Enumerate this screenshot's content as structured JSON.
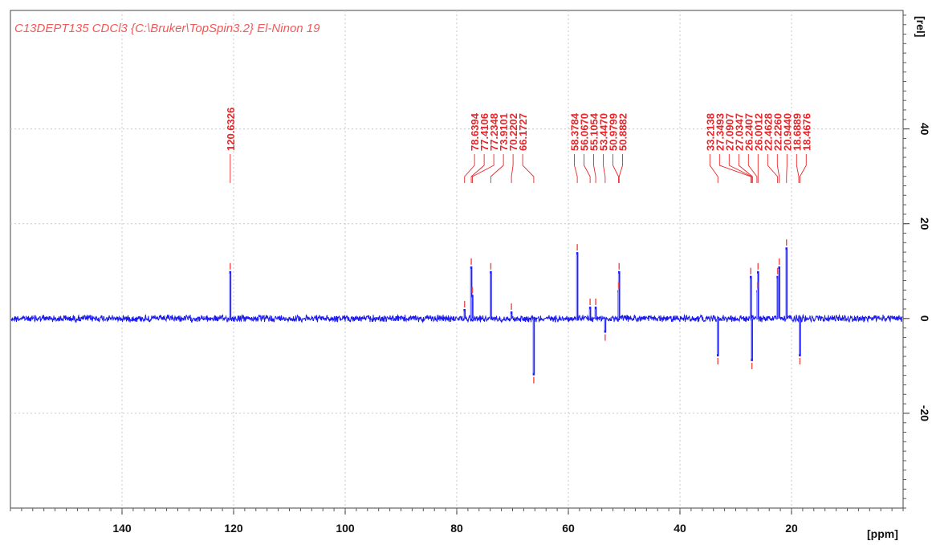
{
  "chart_data": {
    "type": "line",
    "title": "C13DEPT135 CDCl3 {C:\\Bruker\\TopSpin3.2} El-Ninon 19",
    "xlabel": "[ppm]",
    "ylabel": "[rel]",
    "xlim": [
      160,
      0
    ],
    "ylim": [
      -40,
      65
    ],
    "x_ticks": [
      140,
      120,
      100,
      80,
      60,
      40,
      20
    ],
    "y_ticks": [
      40,
      20,
      0,
      -20
    ],
    "grid": true,
    "series": [
      {
        "peaks": [
          {
            "ppm": 120.6,
            "intensity": 10
          },
          {
            "ppm": 78.6,
            "intensity": 2
          },
          {
            "ppm": 77.4,
            "intensity": 11
          },
          {
            "ppm": 77.2,
            "intensity": 5
          },
          {
            "ppm": 73.9,
            "intensity": 10
          },
          {
            "ppm": 70.2,
            "intensity": 1.5
          },
          {
            "ppm": 66.2,
            "intensity": -12
          },
          {
            "ppm": 58.4,
            "intensity": 14
          },
          {
            "ppm": 56.1,
            "intensity": 2.5
          },
          {
            "ppm": 55.1,
            "intensity": 2.5
          },
          {
            "ppm": 53.4,
            "intensity": -3
          },
          {
            "ppm": 51.0,
            "intensity": 6
          },
          {
            "ppm": 50.9,
            "intensity": 10
          },
          {
            "ppm": 33.2,
            "intensity": -8
          },
          {
            "ppm": 27.3,
            "intensity": 9
          },
          {
            "ppm": 27.1,
            "intensity": -9
          },
          {
            "ppm": 26.1,
            "intensity": 6
          },
          {
            "ppm": 26.0,
            "intensity": 10
          },
          {
            "ppm": 22.5,
            "intensity": 9
          },
          {
            "ppm": 22.2,
            "intensity": 11
          },
          {
            "ppm": 20.9,
            "intensity": 15
          },
          {
            "ppm": 18.5,
            "intensity": -8
          }
        ]
      }
    ],
    "peak_label_groups": [
      {
        "labels": [
          "120.6326"
        ],
        "anchor_ppm": 120.6,
        "targets": [
          120.6
        ]
      },
      {
        "labels": [
          "78.6394",
          "77.4106",
          "77.2348",
          "73.9101",
          "70.2202",
          "66.1727"
        ],
        "anchor_ppm": 72.5,
        "targets": [
          78.6,
          77.4,
          77.2,
          73.9,
          70.2,
          66.2
        ]
      },
      {
        "labels": [
          "58.3784",
          "56.0670",
          "55.1054",
          "53.4470",
          "50.9799",
          "50.8882"
        ],
        "anchor_ppm": 54.6,
        "targets": [
          58.4,
          56.1,
          55.1,
          53.4,
          51.0,
          50.9
        ]
      },
      {
        "labels": [
          "33.2138",
          "27.3493",
          "27.0907",
          "27.0347",
          "26.2407",
          "26.0012",
          "22.4628",
          "22.2260",
          "20.9440",
          "18.6889",
          "18.4676"
        ],
        "anchor_ppm": 26.0,
        "targets": [
          33.2,
          27.3,
          27.1,
          27.0,
          26.2,
          26.0,
          22.5,
          22.2,
          20.9,
          18.7,
          18.5
        ]
      }
    ]
  }
}
